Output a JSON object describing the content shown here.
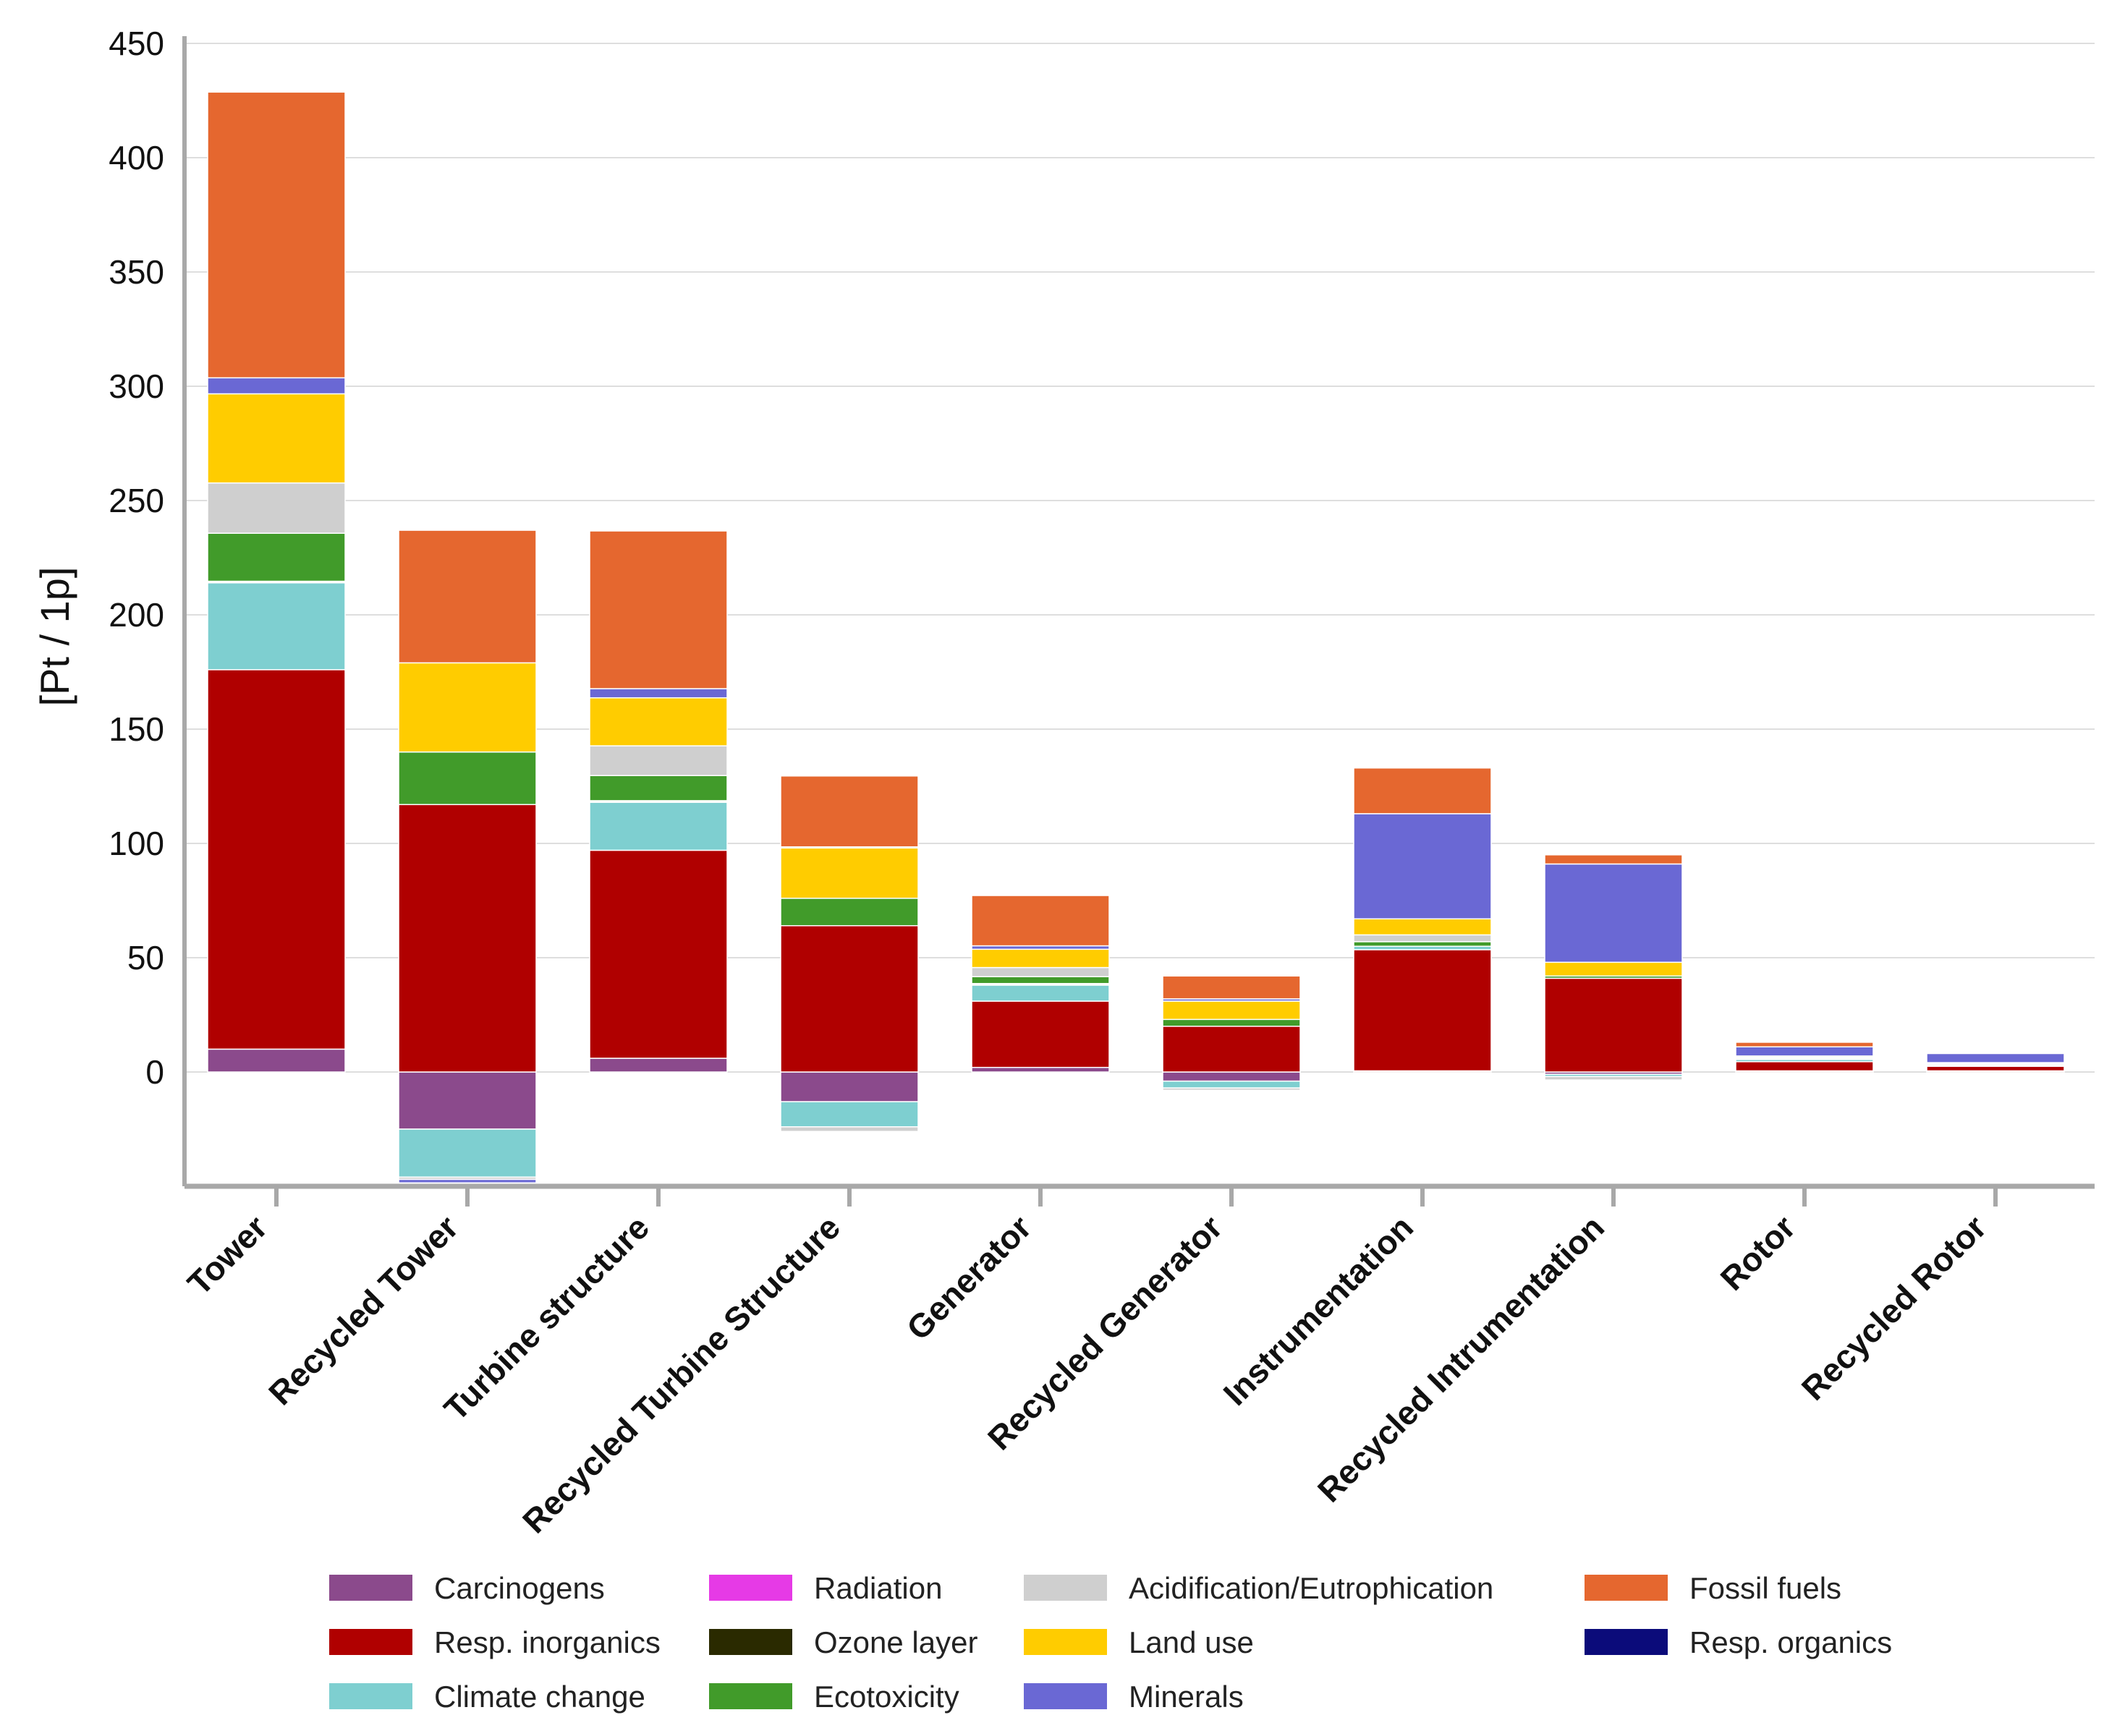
{
  "chart_data": {
    "type": "bar",
    "stacked": true,
    "title": "",
    "xlabel": "",
    "ylabel": "[Pt / 1p]",
    "ylim": [
      -50,
      450
    ],
    "yticks": [
      0,
      50,
      100,
      150,
      200,
      250,
      300,
      350,
      400,
      450
    ],
    "grid": true,
    "legend_position": "bottom",
    "categories": [
      "Tower",
      "Recycled Tower",
      "Turbine structure",
      "Recycled Turbine Structure",
      "Generator",
      "Recycled Generator",
      "Instrumentation",
      "Recycled Intrumentation",
      "Rotor",
      "Recycled Rotor"
    ],
    "series": [
      {
        "name": "Carcinogens",
        "color": "#8b4a8c",
        "values": [
          10,
          -25,
          6,
          -13,
          2,
          -4,
          0.5,
          -1,
          0.5,
          0.5
        ]
      },
      {
        "name": "Resp. organics",
        "color": "#0b0b7a",
        "values": [
          0,
          0,
          0,
          0,
          0,
          0,
          0,
          0,
          0,
          0
        ]
      },
      {
        "name": "Resp. inorganics",
        "color": "#b00000",
        "values": [
          166,
          117,
          91,
          64,
          29,
          20,
          53,
          41,
          4,
          2
        ]
      },
      {
        "name": "Climate change",
        "color": "#7ecfd0",
        "values": [
          38,
          -21,
          21,
          -11,
          7,
          -3,
          1.5,
          -1,
          1,
          0.5
        ]
      },
      {
        "name": "Radiation",
        "color": "#e63ae6",
        "values": [
          0.5,
          0,
          0.5,
          0,
          0.5,
          0,
          0,
          0,
          0,
          0
        ]
      },
      {
        "name": "Ozone layer",
        "color": "#2a2a00",
        "values": [
          0.2,
          0,
          0.2,
          0,
          0.2,
          0,
          0,
          0,
          0,
          0
        ]
      },
      {
        "name": "Ecotoxicity",
        "color": "#419b2a",
        "values": [
          21,
          23,
          11,
          12,
          3,
          3,
          2,
          1,
          0.5,
          0.5
        ]
      },
      {
        "name": "Acidification/Eutrophication",
        "color": "#cfcfcf",
        "values": [
          22,
          -1,
          13,
          -2,
          4,
          -1,
          3,
          -1.5,
          0.5,
          0.3
        ]
      },
      {
        "name": "Land use",
        "color": "#ffcc00",
        "values": [
          39,
          39,
          21,
          22,
          8,
          8,
          7,
          6,
          0.5,
          0.3
        ]
      },
      {
        "name": "Minerals",
        "color": "#6a68d4",
        "values": [
          7,
          -1.5,
          4,
          0.5,
          1.5,
          1,
          46,
          43,
          4,
          4
        ]
      },
      {
        "name": "Fossil fuels",
        "color": "#e5672f",
        "values": [
          125,
          58,
          69,
          31,
          22,
          10,
          20,
          4,
          2,
          0.4
        ]
      }
    ],
    "legend_order": [
      "Carcinogens",
      "Radiation",
      "Acidification/Eutrophication",
      "Fossil fuels",
      "Resp. inorganics",
      "Ozone layer",
      "Land use",
      "Resp. organics",
      "Climate change",
      "Ecotoxicity",
      "Minerals"
    ]
  }
}
